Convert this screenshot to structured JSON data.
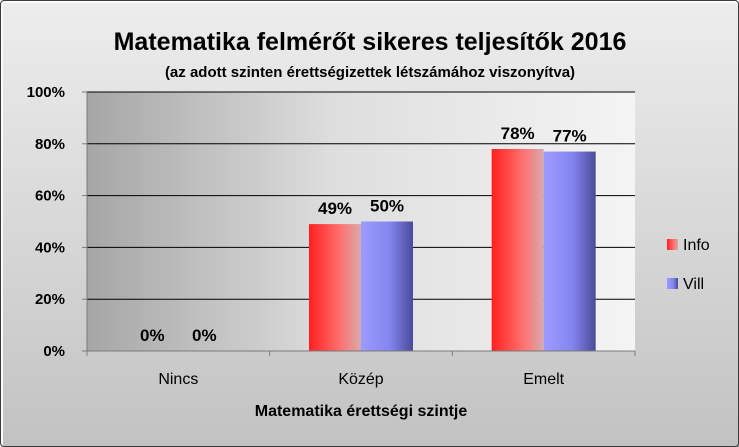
{
  "chart_data": {
    "type": "bar",
    "title": "Matematika felmérőt sikeres teljesítők 2016",
    "subtitle": "(az adott szinten érettségizettek létszámához viszonyítva)",
    "xlabel": "Matematika érettségi szintje",
    "ylabel": "",
    "categories": [
      "Nincs",
      "Közép",
      "Emelt"
    ],
    "series": [
      {
        "name": "Info",
        "values": [
          0,
          49,
          78
        ],
        "labels": [
          "0%",
          "49%",
          "78%"
        ],
        "color": "#ff3b3b"
      },
      {
        "name": "Vill",
        "values": [
          0,
          50,
          77
        ],
        "labels": [
          "0%",
          "50%",
          "77%"
        ],
        "color": "#8080ff"
      }
    ],
    "ylim": [
      0,
      100
    ],
    "yticks": [
      0,
      20,
      40,
      60,
      80,
      100
    ],
    "ytick_labels": [
      "0%",
      "20%",
      "40%",
      "60%",
      "80%",
      "100%"
    ],
    "grid": true,
    "legend_position": "right"
  }
}
